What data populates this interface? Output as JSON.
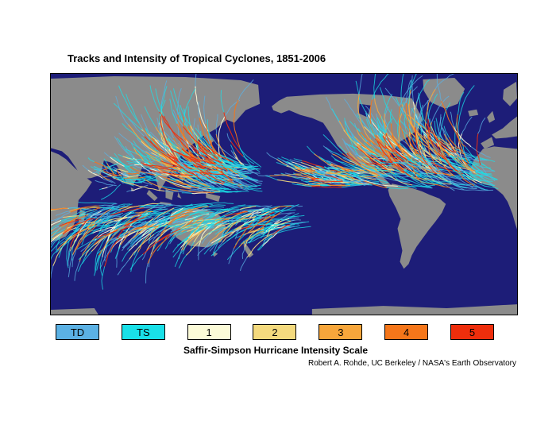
{
  "figure": {
    "title": "Tracks and Intensity of Tropical Cyclones, 1851-2006",
    "caption": "Saffir-Simpson Hurricane Intensity Scale",
    "credit": "Robert A. Rohde, UC Berkeley / NASA's Earth Observatory"
  },
  "map": {
    "ocean_color": "#1D1D78",
    "land_color": "#8B8B8B",
    "border_color": "#000000"
  },
  "legend": {
    "items": [
      {
        "label": "TD",
        "color": "#5BB1E4"
      },
      {
        "label": "TS",
        "color": "#19E0E8"
      },
      {
        "label": "1",
        "color": "#FCFBD8"
      },
      {
        "label": "2",
        "color": "#F4DA7E"
      },
      {
        "label": "3",
        "color": "#F7A63B"
      },
      {
        "label": "4",
        "color": "#F5761A"
      },
      {
        "label": "5",
        "color": "#EE2E0C"
      }
    ]
  }
}
